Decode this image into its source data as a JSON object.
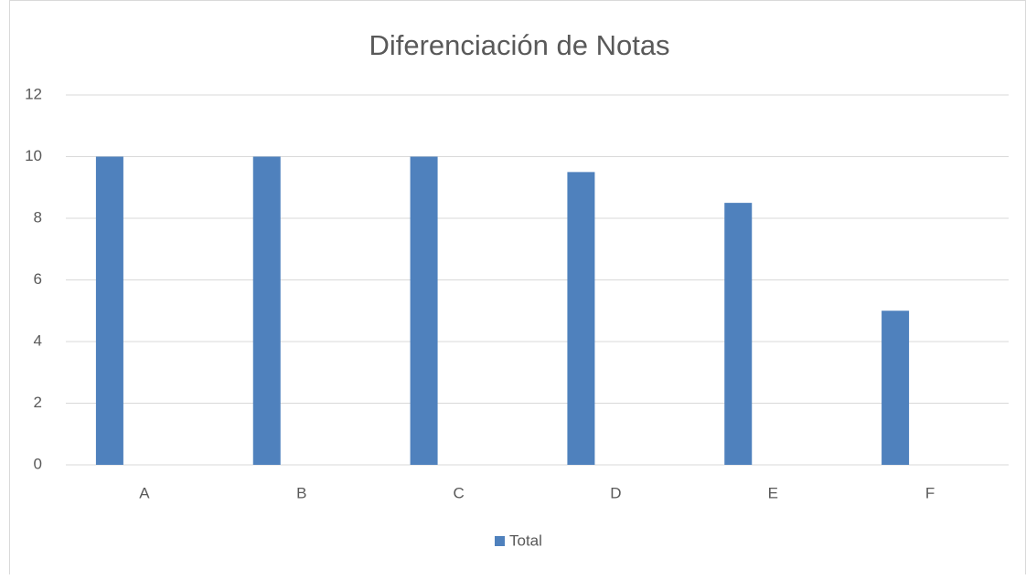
{
  "chart_data": {
    "type": "bar",
    "title": "Diferenciación de Notas",
    "categories": [
      "A",
      "B",
      "C",
      "D",
      "E",
      "F"
    ],
    "series": [
      {
        "name": "Total",
        "color": "#4f81bd",
        "values": [
          10,
          10,
          10,
          9.5,
          8.5,
          5
        ]
      }
    ],
    "ylim": [
      0,
      12
    ],
    "yticks": [
      0,
      2,
      4,
      6,
      8,
      10,
      12
    ],
    "grid": true,
    "legend": "bottom"
  }
}
